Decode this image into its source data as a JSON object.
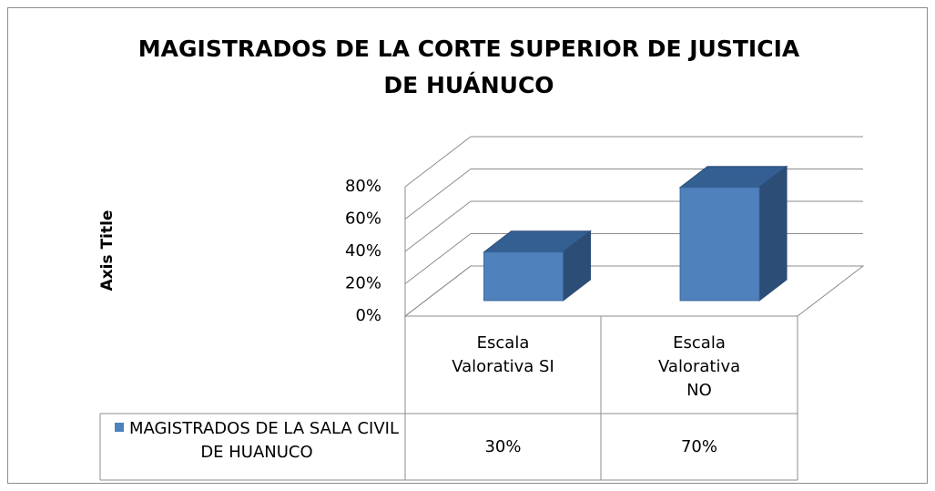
{
  "chart_data": {
    "type": "bar3d",
    "title": "MAGISTRADOS DE LA CORTE SUPERIOR DE JUSTICIA DE HUÁNUCO",
    "y_label": "Axis Title",
    "categories": [
      "Escala Valorativa SI",
      "Escala Valorativa NO"
    ],
    "series": [
      {
        "name": "MAGISTRADOS DE LA SALA CIVIL DE HUANUCO",
        "color": "#4f81bd",
        "values": [
          30,
          70
        ],
        "value_labels": [
          "30%",
          "70%"
        ]
      }
    ],
    "ylim": [
      0,
      80
    ],
    "yticks": [
      {
        "value": 0,
        "label": "0%"
      },
      {
        "value": 20,
        "label": "20%"
      },
      {
        "value": 40,
        "label": "40%"
      },
      {
        "value": 60,
        "label": "60%"
      },
      {
        "value": 80,
        "label": "80%"
      }
    ],
    "grid": true
  }
}
